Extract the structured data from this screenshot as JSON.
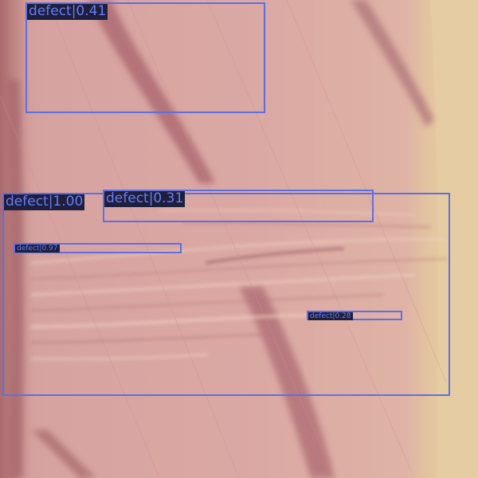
{
  "detections": [
    {
      "label": "defect|1.00",
      "score": 1.0
    },
    {
      "label": "defect|0.97",
      "score": 0.97
    },
    {
      "label": "defect|0.41",
      "score": 0.41
    },
    {
      "label": "defect|0.31",
      "score": 0.31
    },
    {
      "label": "defect|0.28",
      "score": 0.28
    }
  ],
  "colors": {
    "box": "#5f6fe0",
    "label_bg": "#1d1f3c",
    "label_text": "#6a7cf2",
    "background_pink": "#d9a7a2",
    "background_tan": "#e3c9a0"
  }
}
